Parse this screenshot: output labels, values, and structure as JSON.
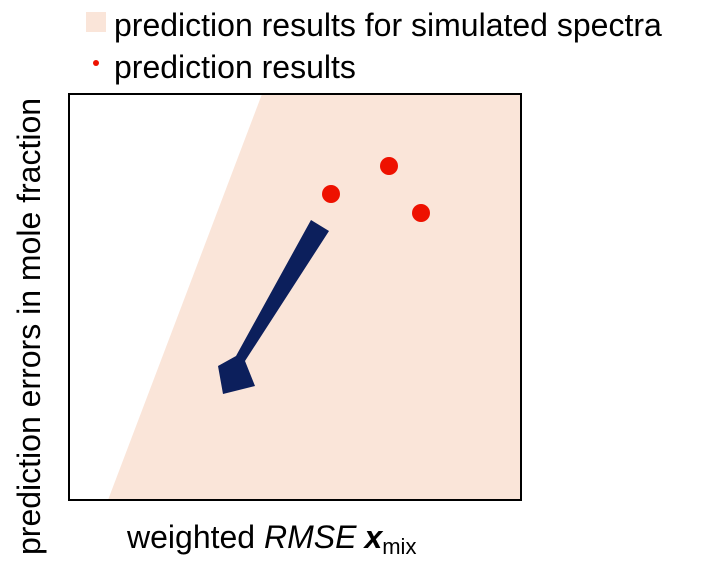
{
  "legend": {
    "items": [
      {
        "label": "prediction results for simulated spectra",
        "swatch": "square",
        "color": "#fae5d9"
      },
      {
        "label": "prediction results",
        "swatch": "dot",
        "color": "#ee1100"
      }
    ]
  },
  "axes": {
    "xlabel": {
      "prefix": "weighted ",
      "italic": "RMSE",
      "variable": "x",
      "subscript": "mix"
    },
    "ylabel": "prediction errors in mole fraction"
  },
  "colors": {
    "region": "#fae5d9",
    "points": "#ee1100",
    "arrow": "#0c1f5c",
    "frame": "#000000"
  },
  "elements": {
    "arrow_icon": "down-left-arrow",
    "points_count": 3
  }
}
